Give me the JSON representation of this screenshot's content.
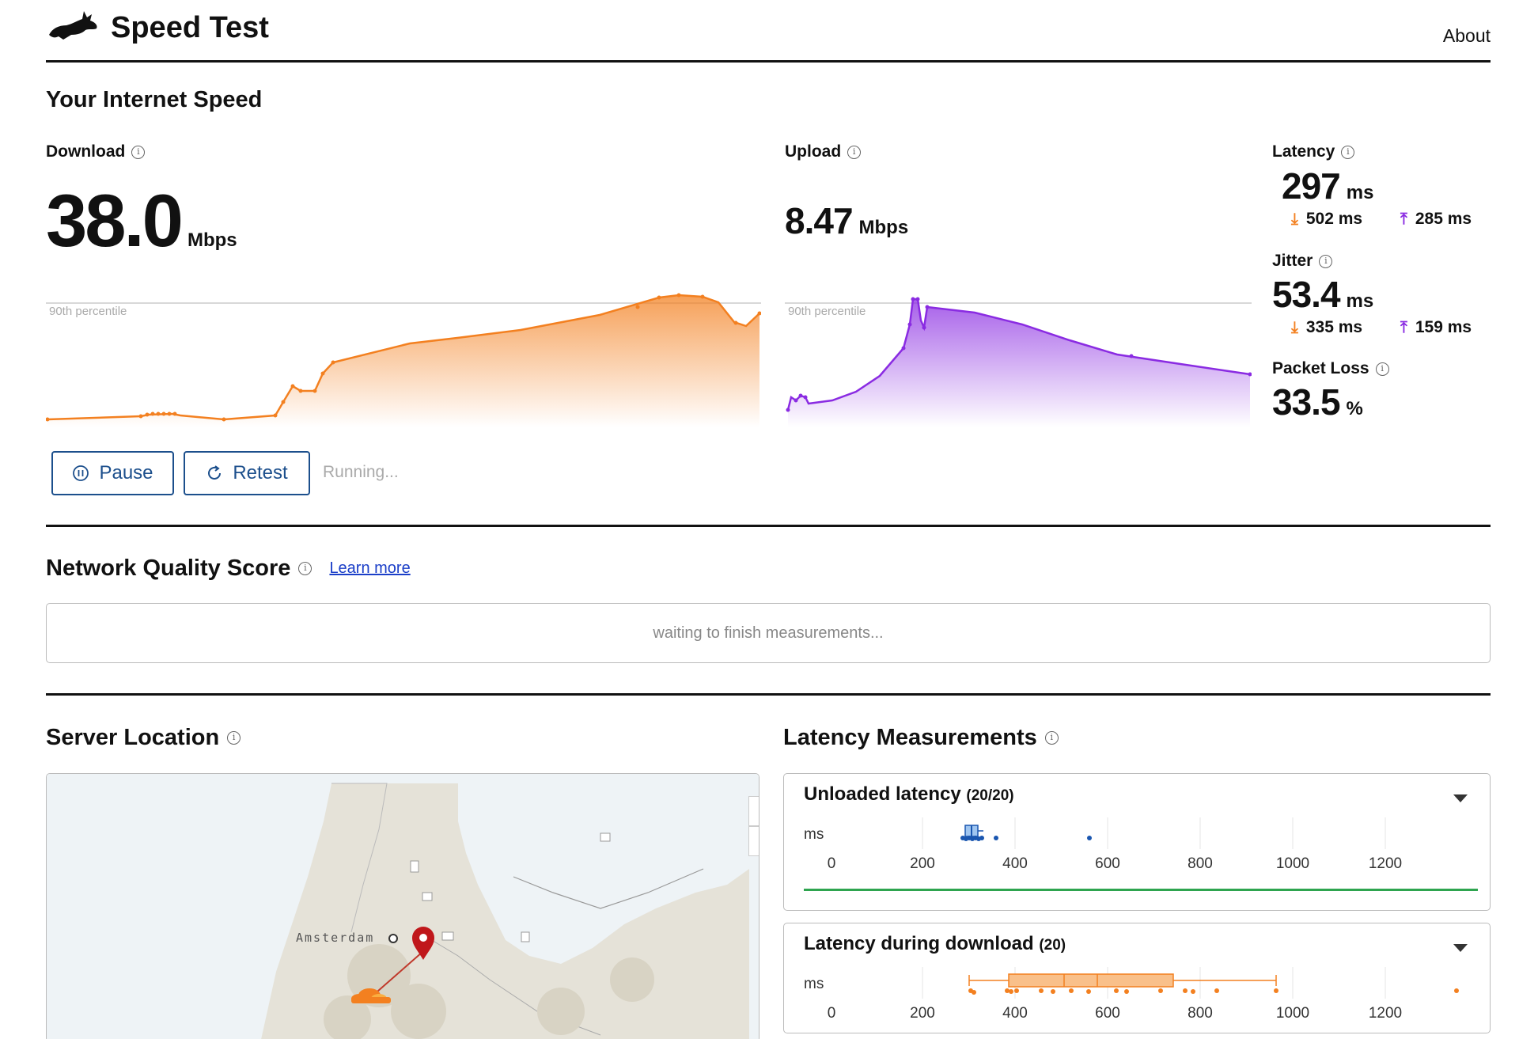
{
  "header": {
    "title": "Speed Test",
    "about": "About"
  },
  "speed": {
    "heading": "Your Internet Speed",
    "download": {
      "label": "Download",
      "value": "38.0",
      "unit": "Mbps",
      "percentile": "90th percentile"
    },
    "upload": {
      "label": "Upload",
      "value": "8.47",
      "unit": "Mbps",
      "percentile": "90th percentile"
    },
    "latency": {
      "label": "Latency",
      "value": "297",
      "unit": "ms",
      "down": "502 ms",
      "up": "285 ms"
    },
    "jitter": {
      "label": "Jitter",
      "value": "53.4",
      "unit": "ms",
      "down": "335 ms",
      "up": "159 ms"
    },
    "packet_loss": {
      "label": "Packet Loss",
      "value": "33.5",
      "unit": "%"
    },
    "pause_label": "Pause",
    "retest_label": "Retest",
    "status": "Running..."
  },
  "nqs": {
    "heading": "Network Quality Score",
    "learn_more": "Learn more",
    "message": "waiting to finish measurements..."
  },
  "server": {
    "heading": "Server Location",
    "city": "Amsterdam",
    "zoom_in": "+",
    "zoom_out": "−"
  },
  "latency_measurements": {
    "heading": "Latency Measurements",
    "unloaded": {
      "title": "Unloaded latency",
      "count": "(20/20)"
    },
    "during_download": {
      "title": "Latency during download",
      "count": "(20)"
    },
    "unit": "ms",
    "ticks": [
      "0",
      "200",
      "400",
      "600",
      "800",
      "1000",
      "1200"
    ]
  },
  "colors": {
    "download": "#f38020",
    "upload": "#8a2be2",
    "link": "#1a3ec8",
    "button": "#1c4f8c",
    "good": "#2ea44f"
  }
}
